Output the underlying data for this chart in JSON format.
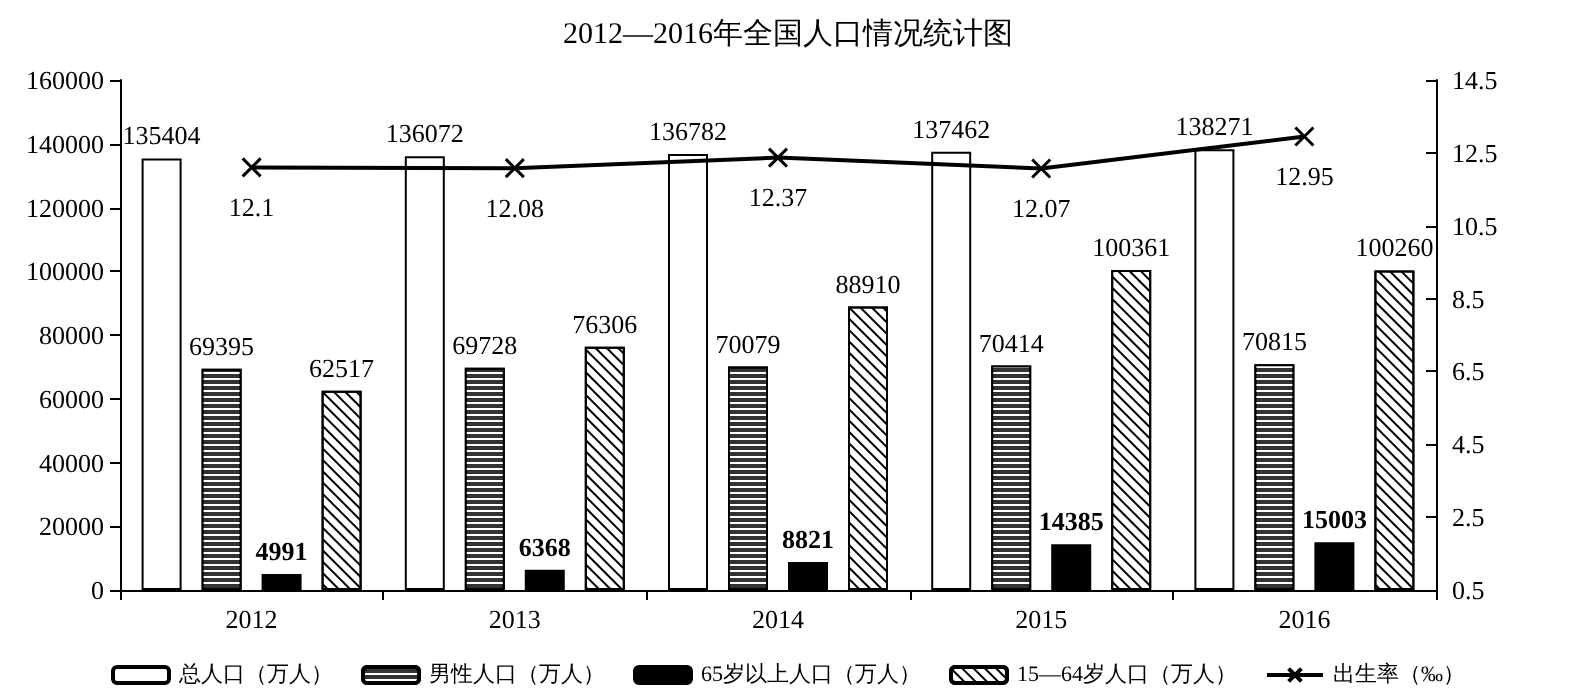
{
  "chart_data": {
    "type": "bar",
    "title": "2012—2016年全国人口情况统计图",
    "categories": [
      "2012",
      "2013",
      "2014",
      "2015",
      "2016"
    ],
    "series": [
      {
        "name": "总人口（万人）",
        "color": "#ffffff",
        "values": [
          135404,
          136072,
          136782,
          137462,
          138271
        ]
      },
      {
        "name": "男性人口（万人）",
        "color": "#333333",
        "values": [
          69395,
          69728,
          70079,
          70414,
          70815
        ]
      },
      {
        "name": "65岁以上人口（万人）",
        "color": "#000000",
        "values": [
          4991,
          6368,
          8821,
          14385,
          15003
        ]
      },
      {
        "name": "15—64岁人口（万人）",
        "color": "#ffffff",
        "values": [
          62517,
          76306,
          88910,
          100361,
          100260
        ]
      },
      {
        "name": "出生率（‰）",
        "type": "line",
        "axis": "y2",
        "color": "#000000",
        "marker": "cross",
        "values": [
          12.1,
          12.08,
          12.37,
          12.07,
          12.95
        ]
      }
    ],
    "ylim": [
      0,
      160000
    ],
    "yticks": [
      0,
      20000,
      40000,
      60000,
      80000,
      100000,
      120000,
      140000,
      160000
    ],
    "y2lim": [
      0.5,
      14.5
    ],
    "y2ticks": [
      0.5,
      2.5,
      4.5,
      6.5,
      8.5,
      10.5,
      12.5,
      14.5
    ],
    "data_labels": true,
    "grid": false,
    "legend": "bottom"
  }
}
